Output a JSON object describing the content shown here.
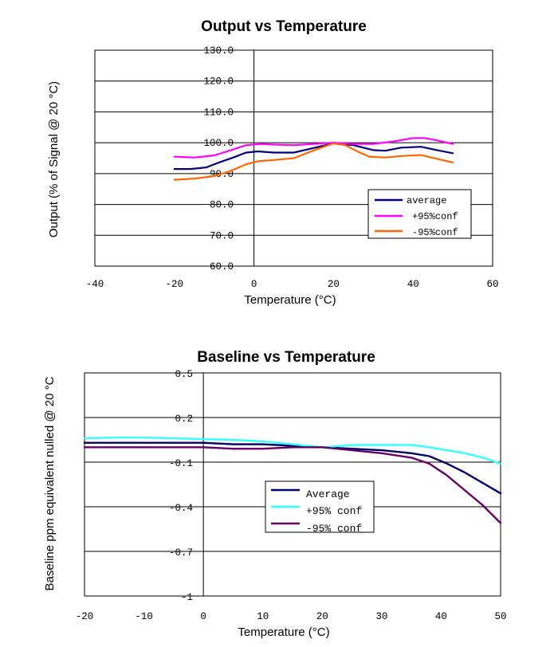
{
  "chart_data": [
    {
      "type": "line",
      "title": "Output vs Temperature",
      "xlabel": "Temperature (°C)",
      "ylabel": "Output (% of Signal @ 20 °C)",
      "xlim": [
        -40,
        60
      ],
      "ylim": [
        60,
        130
      ],
      "x_ticks": [
        "-40",
        "-20",
        "0",
        "20",
        "40",
        "60"
      ],
      "y_ticks": [
        "60.0",
        "70.0",
        "80.0",
        "90.0",
        "100.0",
        "110.0",
        "120.0",
        "130.0"
      ],
      "grid": "horizontal",
      "legend_position": "bottom-right",
      "series": [
        {
          "name": "average",
          "color": "#000080",
          "points": [
            [
              -20,
              91.5
            ],
            [
              -16,
              91.5
            ],
            [
              -12,
              92.0
            ],
            [
              -9,
              93.5
            ],
            [
              -5,
              95.3
            ],
            [
              -2,
              96.8
            ],
            [
              1,
              97.2
            ],
            [
              5,
              96.8
            ],
            [
              10,
              96.8
            ],
            [
              15,
              98.3
            ],
            [
              20,
              99.8
            ],
            [
              25,
              99.2
            ],
            [
              30,
              97.6
            ],
            [
              33,
              97.4
            ],
            [
              37,
              98.4
            ],
            [
              42,
              98.7
            ],
            [
              46,
              97.6
            ],
            [
              50,
              96.6
            ]
          ]
        },
        {
          "name": "+95%conf",
          "color": "#ff00ff",
          "points": [
            [
              -20,
              95.5
            ],
            [
              -15,
              95.2
            ],
            [
              -10,
              95.9
            ],
            [
              -6,
              97.5
            ],
            [
              -2,
              99.2
            ],
            [
              2,
              99.6
            ],
            [
              5,
              99.4
            ],
            [
              10,
              99.2
            ],
            [
              15,
              99.6
            ],
            [
              20,
              100.0
            ],
            [
              25,
              99.6
            ],
            [
              30,
              99.6
            ],
            [
              35,
              100.4
            ],
            [
              40,
              101.5
            ],
            [
              43,
              101.5
            ],
            [
              47,
              100.5
            ],
            [
              50,
              99.6
            ]
          ]
        },
        {
          "name": "-95%conf",
          "color": "#ff6600",
          "points": [
            [
              -20,
              88.0
            ],
            [
              -15,
              88.4
            ],
            [
              -10,
              89.2
            ],
            [
              -6,
              90.8
            ],
            [
              -2,
              93.0
            ],
            [
              1,
              94.0
            ],
            [
              5,
              94.4
            ],
            [
              10,
              95.0
            ],
            [
              15,
              97.5
            ],
            [
              20,
              99.8
            ],
            [
              23,
              99.2
            ],
            [
              26,
              97.2
            ],
            [
              29,
              95.5
            ],
            [
              33,
              95.2
            ],
            [
              37,
              95.7
            ],
            [
              42,
              96.0
            ],
            [
              46,
              94.8
            ],
            [
              50,
              93.6
            ]
          ]
        }
      ]
    },
    {
      "type": "line",
      "title": "Baseline vs Temperature",
      "xlabel": "Temperature (°C)",
      "ylabel": "Baseline ppm equivalent nulled @ 20 °C",
      "xlim": [
        -20,
        50
      ],
      "ylim": [
        -1,
        0.5
      ],
      "x_ticks": [
        "-20",
        "-10",
        "0",
        "10",
        "20",
        "30",
        "40",
        "50"
      ],
      "y_ticks": [
        "-1",
        "-0.7",
        "-0.4",
        "-0.1",
        "0.2",
        "0.5"
      ],
      "grid": "horizontal",
      "legend_position": "center",
      "series": [
        {
          "name": "Average",
          "color": "#000066",
          "points": [
            [
              -20,
              0.03
            ],
            [
              -15,
              0.03
            ],
            [
              -10,
              0.03
            ],
            [
              -5,
              0.03
            ],
            [
              0,
              0.03
            ],
            [
              5,
              0.02
            ],
            [
              10,
              0.02
            ],
            [
              15,
              0.01
            ],
            [
              20,
              0.0
            ],
            [
              25,
              -0.01
            ],
            [
              30,
              -0.02
            ],
            [
              35,
              -0.04
            ],
            [
              38,
              -0.06
            ],
            [
              41,
              -0.11
            ],
            [
              44,
              -0.17
            ],
            [
              47,
              -0.24
            ],
            [
              50,
              -0.31
            ]
          ]
        },
        {
          "name": "+95% conf",
          "color": "#33ffff",
          "points": [
            [
              -20,
              0.06
            ],
            [
              -15,
              0.065
            ],
            [
              -10,
              0.065
            ],
            [
              -5,
              0.06
            ],
            [
              0,
              0.055
            ],
            [
              5,
              0.05
            ],
            [
              10,
              0.04
            ],
            [
              15,
              0.02
            ],
            [
              20,
              0.0
            ],
            [
              25,
              0.015
            ],
            [
              30,
              0.015
            ],
            [
              35,
              0.015
            ],
            [
              38,
              0.0
            ],
            [
              41,
              -0.02
            ],
            [
              44,
              -0.04
            ],
            [
              47,
              -0.07
            ],
            [
              50,
              -0.11
            ]
          ]
        },
        {
          "name": "-95% conf",
          "color": "#660066",
          "points": [
            [
              -20,
              0.0
            ],
            [
              -15,
              0.0
            ],
            [
              -10,
              0.0
            ],
            [
              -5,
              0.0
            ],
            [
              0,
              0.0
            ],
            [
              5,
              -0.01
            ],
            [
              10,
              -0.01
            ],
            [
              15,
              0.0
            ],
            [
              20,
              0.0
            ],
            [
              25,
              -0.02
            ],
            [
              30,
              -0.04
            ],
            [
              35,
              -0.07
            ],
            [
              38,
              -0.11
            ],
            [
              41,
              -0.19
            ],
            [
              44,
              -0.29
            ],
            [
              47,
              -0.39
            ],
            [
              50,
              -0.51
            ]
          ]
        }
      ]
    }
  ]
}
